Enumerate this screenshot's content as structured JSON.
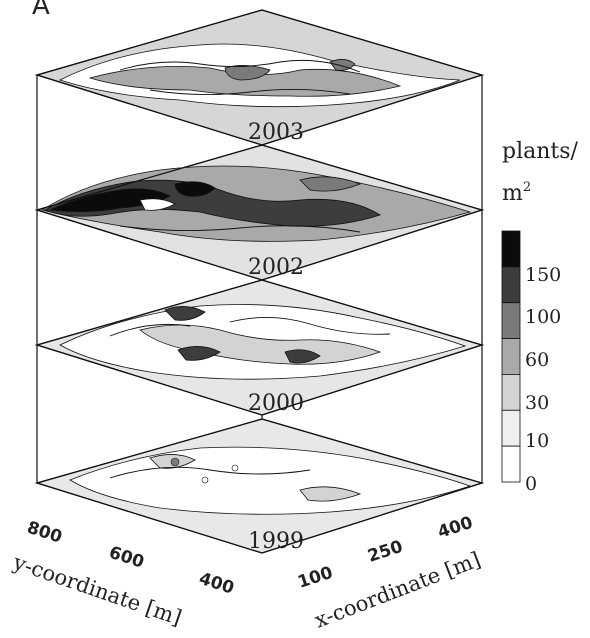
{
  "panel_label": "A",
  "years": [
    "2003",
    "2002",
    "2000",
    "1999"
  ],
  "legend": {
    "title_line1": "plants/",
    "title_line2_base": "m",
    "title_line2_sup": "2",
    "ticks": [
      "150",
      "100",
      "60",
      "30",
      "10",
      "0"
    ],
    "colors": [
      "#0b0b0b",
      "#3d3d3d",
      "#7a7a7a",
      "#a9a9a9",
      "#d3d3d3",
      "#efefef",
      "#ffffff"
    ]
  },
  "y_axis": {
    "label": "y-coordinate [m]",
    "ticks": [
      "800",
      "600",
      "400"
    ]
  },
  "x_axis": {
    "label": "x-coordinate [m]",
    "ticks": [
      "100",
      "250",
      "400"
    ]
  }
}
